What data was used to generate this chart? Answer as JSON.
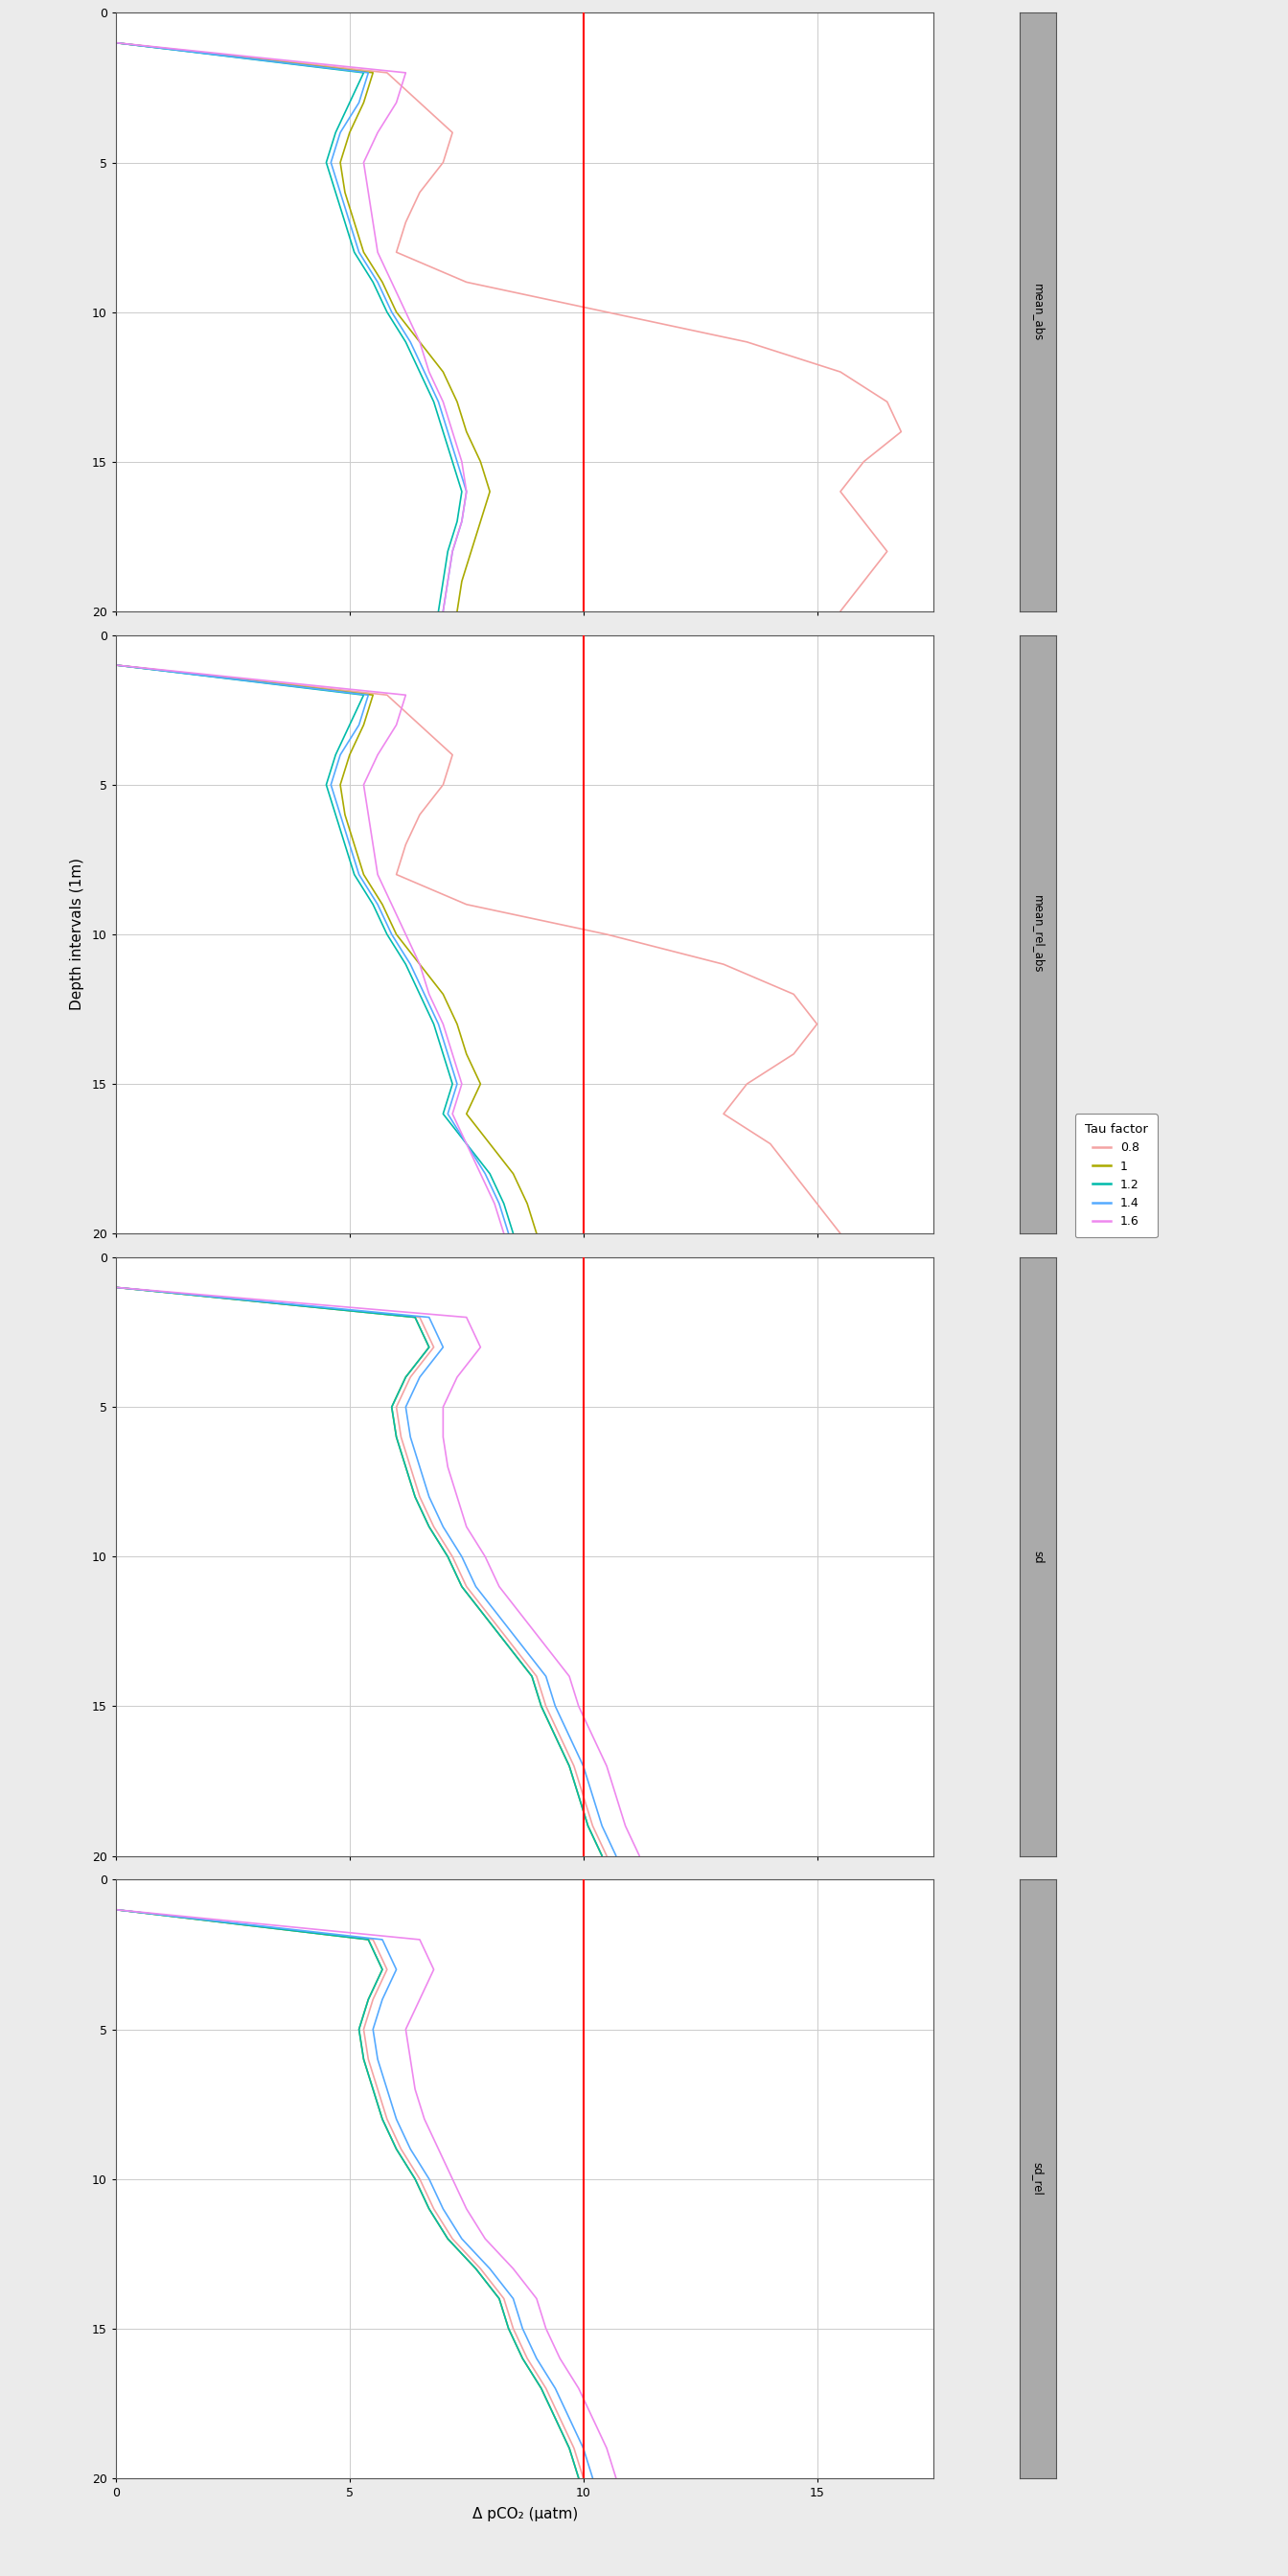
{
  "tau_factors": [
    "0.8",
    "1",
    "1.2",
    "1.4",
    "1.6"
  ],
  "tau_colors": {
    "0.8": "#f4a3a3",
    "1": "#aaaa00",
    "1.2": "#00bbaa",
    "1.4": "#55aaff",
    "1.6": "#ee88ee"
  },
  "panel_labels": [
    "mean_abs",
    "mean_rel_abs",
    "sd",
    "sd_rel"
  ],
  "redline_x": 10.0,
  "xlabel": "Δ pCO₂ (μatm)",
  "ylabel": "Depth intervals (1m)",
  "xlim": [
    0,
    17.5
  ],
  "ylim_max": 20,
  "xticks": [
    0,
    5,
    10,
    15
  ],
  "yticks": [
    0,
    5,
    10,
    15,
    20
  ],
  "legend_title": "Tau factor",
  "fig_bg": "#ebebeb",
  "panel_bg": "#ffffff",
  "strip_bg": "#aaaaaa",
  "grid_color": "#cccccc"
}
